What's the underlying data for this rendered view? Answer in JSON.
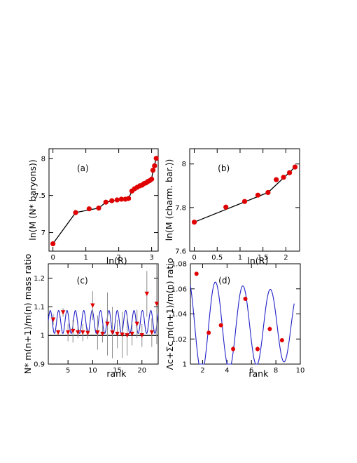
{
  "colors": {
    "marker": "#e00000",
    "fit": "#2020c8",
    "line": "#000000"
  },
  "chart_data": [
    {
      "id": "a",
      "type": "scatter",
      "panel_label": "(a)",
      "xlabel": "ln(R)",
      "ylabel": "ln(M (N* baryons))",
      "xlim": [
        -0.12,
        3.2
      ],
      "ylim": [
        6.75,
        8.13
      ],
      "xticks": [
        0,
        1,
        2,
        3
      ],
      "yticks": [
        7,
        7.5,
        8
      ],
      "marker": "circle",
      "points": [
        [
          0,
          6.85
        ],
        [
          0.69,
          7.27
        ],
        [
          1.1,
          7.32
        ],
        [
          1.39,
          7.33
        ],
        [
          1.61,
          7.41
        ],
        [
          1.79,
          7.43
        ],
        [
          1.95,
          7.44
        ],
        [
          2.08,
          7.45
        ],
        [
          2.2,
          7.45
        ],
        [
          2.3,
          7.46
        ],
        [
          2.4,
          7.56
        ],
        [
          2.48,
          7.59
        ],
        [
          2.56,
          7.61
        ],
        [
          2.64,
          7.63
        ],
        [
          2.71,
          7.64
        ],
        [
          2.77,
          7.66
        ],
        [
          2.83,
          7.67
        ],
        [
          2.89,
          7.69
        ],
        [
          2.94,
          7.7
        ],
        [
          3.0,
          7.72
        ],
        [
          3.04,
          7.84
        ],
        [
          3.09,
          7.9
        ],
        [
          3.14,
          8.0
        ]
      ],
      "fit_line": [
        [
          0,
          6.85
        ],
        [
          0.69,
          7.27
        ],
        [
          1.39,
          7.33
        ],
        [
          1.61,
          7.41
        ],
        [
          2.3,
          7.46
        ],
        [
          2.4,
          7.56
        ],
        [
          3.0,
          7.72
        ],
        [
          3.04,
          7.84
        ],
        [
          3.14,
          8.0
        ]
      ]
    },
    {
      "id": "b",
      "type": "scatter",
      "panel_label": "(b)",
      "xlabel": "ln(R)",
      "ylabel": "ln(M (charm. bar.))",
      "xlim": [
        -0.1,
        2.3
      ],
      "ylim": [
        7.6,
        8.07
      ],
      "xticks": [
        0,
        0.5,
        1,
        1.5,
        2
      ],
      "yticks": [
        7.6,
        7.8,
        8
      ],
      "marker": "circle",
      "points": [
        [
          0,
          7.733
        ],
        [
          0.69,
          7.802
        ],
        [
          1.1,
          7.828
        ],
        [
          1.39,
          7.857
        ],
        [
          1.61,
          7.869
        ],
        [
          1.79,
          7.928
        ],
        [
          1.95,
          7.939
        ],
        [
          2.08,
          7.96
        ],
        [
          2.2,
          7.986
        ]
      ],
      "fit_line": [
        [
          0,
          7.733
        ],
        [
          1.61,
          7.869
        ],
        [
          2.2,
          7.986
        ]
      ]
    },
    {
      "id": "c",
      "type": "scatter",
      "panel_label": "(c)",
      "xlabel": "rank",
      "ylabel": "N* m(n+1)/m(n) mass ratio",
      "xlim": [
        1,
        23.3
      ],
      "ylim": [
        0.9,
        1.25
      ],
      "xticks": [
        5,
        10,
        15,
        20
      ],
      "yticks": [
        0.9,
        1,
        1.1,
        1.2
      ],
      "marker": "triangle-down",
      "reference_line": 1,
      "fit_curve": {
        "model": "offset + amp*cos(2*pi*(x - phase)/period)",
        "offset": 1.047,
        "amp": 0.04,
        "period": 1.7,
        "phase": 1.4
      },
      "points": [
        [
          2,
          1.055,
          0.02
        ],
        [
          3,
          1.01,
          0.01
        ],
        [
          4,
          1.08,
          0.015
        ],
        [
          5,
          1.01,
          0.03
        ],
        [
          6,
          1.015,
          0.04
        ],
        [
          7,
          1.01,
          0.02
        ],
        [
          8,
          1.01,
          0.03
        ],
        [
          9,
          1.008,
          0.02
        ],
        [
          10,
          1.104,
          0.05
        ],
        [
          11,
          1.01,
          0.06
        ],
        [
          12,
          1.005,
          0.03
        ],
        [
          13,
          1.04,
          0.11
        ],
        [
          14,
          1.01,
          0.09
        ],
        [
          15,
          1.005,
          0.05
        ],
        [
          16,
          1.002,
          0.08
        ],
        [
          17,
          1.0,
          0.07
        ],
        [
          18,
          1.005,
          0.04
        ],
        [
          19,
          1.04,
          0.05
        ],
        [
          20,
          1.0,
          0.04
        ],
        [
          21,
          1.145,
          0.08
        ],
        [
          22,
          1.01,
          0.05
        ],
        [
          23,
          1.11,
          0.14
        ]
      ]
    },
    {
      "id": "d",
      "type": "scatter",
      "panel_label": "(d)",
      "xlabel": "rank",
      "ylabel": "Λc+Σc m(n+1)/m(n) ratio",
      "xlim": [
        1,
        10
      ],
      "ylim": [
        1,
        1.08
      ],
      "xticks": [
        2,
        4,
        6,
        8,
        10
      ],
      "yticks": [
        1,
        1.02,
        1.04,
        1.06,
        1.08
      ],
      "marker": "circle",
      "fit_curve": {
        "model": "offset + amp*exp(-decay*x)*cos(2*pi*(x - phase)/period)",
        "offset": 1.03,
        "amp": 0.04,
        "decay": 0.04,
        "period": 2.25,
        "phase": 3.05,
        "x_range": [
          1,
          9.5
        ]
      },
      "points": [
        [
          1.5,
          1.072,
          0.001
        ],
        [
          2.5,
          1.025,
          0.001
        ],
        [
          3.5,
          1.031,
          0.001
        ],
        [
          4.5,
          1.012,
          0.002
        ],
        [
          5.5,
          1.052,
          0.001
        ],
        [
          6.5,
          1.012,
          0.002
        ],
        [
          7.5,
          1.028,
          0.002
        ],
        [
          8.5,
          1.019,
          0.001
        ]
      ]
    }
  ]
}
